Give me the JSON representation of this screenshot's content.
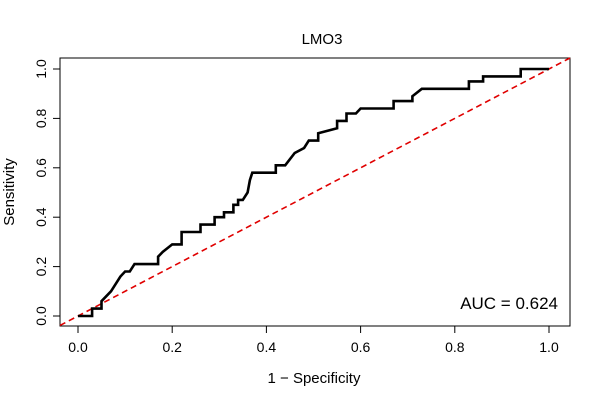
{
  "chart_data": {
    "type": "line",
    "title": "LMO3",
    "xlabel": "1 − Specificity",
    "ylabel": "Sensitivity",
    "xlim": [
      0,
      1
    ],
    "ylim": [
      0,
      1
    ],
    "xticks": [
      "0.0",
      "0.2",
      "0.4",
      "0.6",
      "0.8",
      "1.0"
    ],
    "yticks": [
      "0.0",
      "0.2",
      "0.4",
      "0.6",
      "0.8",
      "1.0"
    ],
    "annotation": "AUC = 0.624",
    "grid": false,
    "colors": {
      "roc": "#000000",
      "reference": "#e00000"
    },
    "series": [
      {
        "style": "solid",
        "x": [
          0.0,
          0.03,
          0.03,
          0.05,
          0.05,
          0.06,
          0.07,
          0.08,
          0.09,
          0.1,
          0.11,
          0.12,
          0.12,
          0.17,
          0.17,
          0.18,
          0.2,
          0.22,
          0.22,
          0.26,
          0.26,
          0.29,
          0.29,
          0.31,
          0.31,
          0.33,
          0.33,
          0.34,
          0.34,
          0.35,
          0.36,
          0.365,
          0.37,
          0.42,
          0.42,
          0.44,
          0.46,
          0.48,
          0.49,
          0.51,
          0.51,
          0.55,
          0.55,
          0.57,
          0.57,
          0.59,
          0.6,
          0.67,
          0.67,
          0.71,
          0.71,
          0.73,
          0.83,
          0.83,
          0.86,
          0.86,
          0.94,
          0.94,
          1.0
        ],
        "y": [
          0.0,
          0.0,
          0.03,
          0.03,
          0.06,
          0.08,
          0.1,
          0.13,
          0.16,
          0.18,
          0.18,
          0.21,
          0.21,
          0.21,
          0.24,
          0.26,
          0.29,
          0.29,
          0.34,
          0.34,
          0.37,
          0.37,
          0.4,
          0.4,
          0.42,
          0.42,
          0.45,
          0.45,
          0.47,
          0.47,
          0.5,
          0.55,
          0.58,
          0.58,
          0.61,
          0.61,
          0.66,
          0.68,
          0.71,
          0.71,
          0.74,
          0.76,
          0.79,
          0.79,
          0.82,
          0.82,
          0.84,
          0.84,
          0.87,
          0.87,
          0.89,
          0.92,
          0.92,
          0.95,
          0.95,
          0.97,
          0.97,
          1.0,
          1.0
        ]
      },
      {
        "style": "dashed",
        "x": [
          0,
          1
        ],
        "y": [
          0,
          1
        ]
      }
    ]
  }
}
